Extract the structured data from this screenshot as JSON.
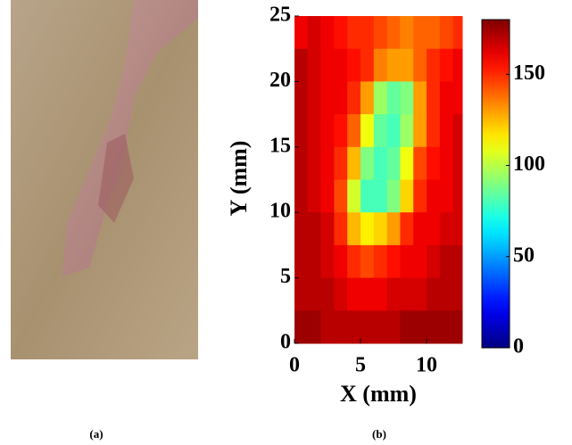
{
  "panel_labels": [
    "(a)",
    "(b)"
  ],
  "chart_data": {
    "type": "heatmap",
    "colormap": "jet",
    "xlabel": "X (mm)",
    "ylabel": "Y (mm)",
    "xlim": [
      0,
      12.7
    ],
    "ylim": [
      0,
      25
    ],
    "xticks": [
      0,
      5,
      10
    ],
    "yticks": [
      0,
      5,
      10,
      15,
      20,
      25
    ],
    "x": [
      0.5,
      1.5,
      2.5,
      3.5,
      4.5,
      5.5,
      6.5,
      7.5,
      8.5,
      9.5,
      10.5,
      11.5,
      12.5
    ],
    "y": [
      23.75,
      21.25,
      18.75,
      16.25,
      13.75,
      11.25,
      8.75,
      6.25,
      3.75,
      1.25
    ],
    "z": [
      [
        160,
        165,
        160,
        155,
        150,
        150,
        145,
        140,
        135,
        140,
        140,
        145,
        150
      ],
      [
        170,
        165,
        160,
        160,
        155,
        150,
        135,
        130,
        130,
        140,
        150,
        155,
        160
      ],
      [
        170,
        165,
        160,
        160,
        150,
        130,
        95,
        85,
        90,
        130,
        150,
        160,
        160
      ],
      [
        170,
        165,
        160,
        155,
        140,
        110,
        85,
        80,
        95,
        130,
        150,
        160,
        165
      ],
      [
        170,
        165,
        160,
        150,
        125,
        90,
        80,
        85,
        110,
        145,
        155,
        160,
        165
      ],
      [
        170,
        165,
        160,
        145,
        105,
        80,
        80,
        90,
        120,
        150,
        160,
        160,
        165
      ],
      [
        170,
        170,
        165,
        150,
        125,
        115,
        120,
        130,
        150,
        160,
        160,
        165,
        165
      ],
      [
        170,
        170,
        165,
        160,
        150,
        145,
        150,
        155,
        160,
        160,
        165,
        170,
        170
      ],
      [
        170,
        170,
        170,
        165,
        160,
        160,
        160,
        165,
        165,
        165,
        170,
        170,
        170
      ],
      [
        175,
        175,
        170,
        170,
        170,
        170,
        170,
        170,
        175,
        175,
        175,
        175,
        175
      ]
    ],
    "colorbar": {
      "lim": [
        0,
        180
      ],
      "ticks": [
        0,
        50,
        100,
        150
      ]
    }
  }
}
